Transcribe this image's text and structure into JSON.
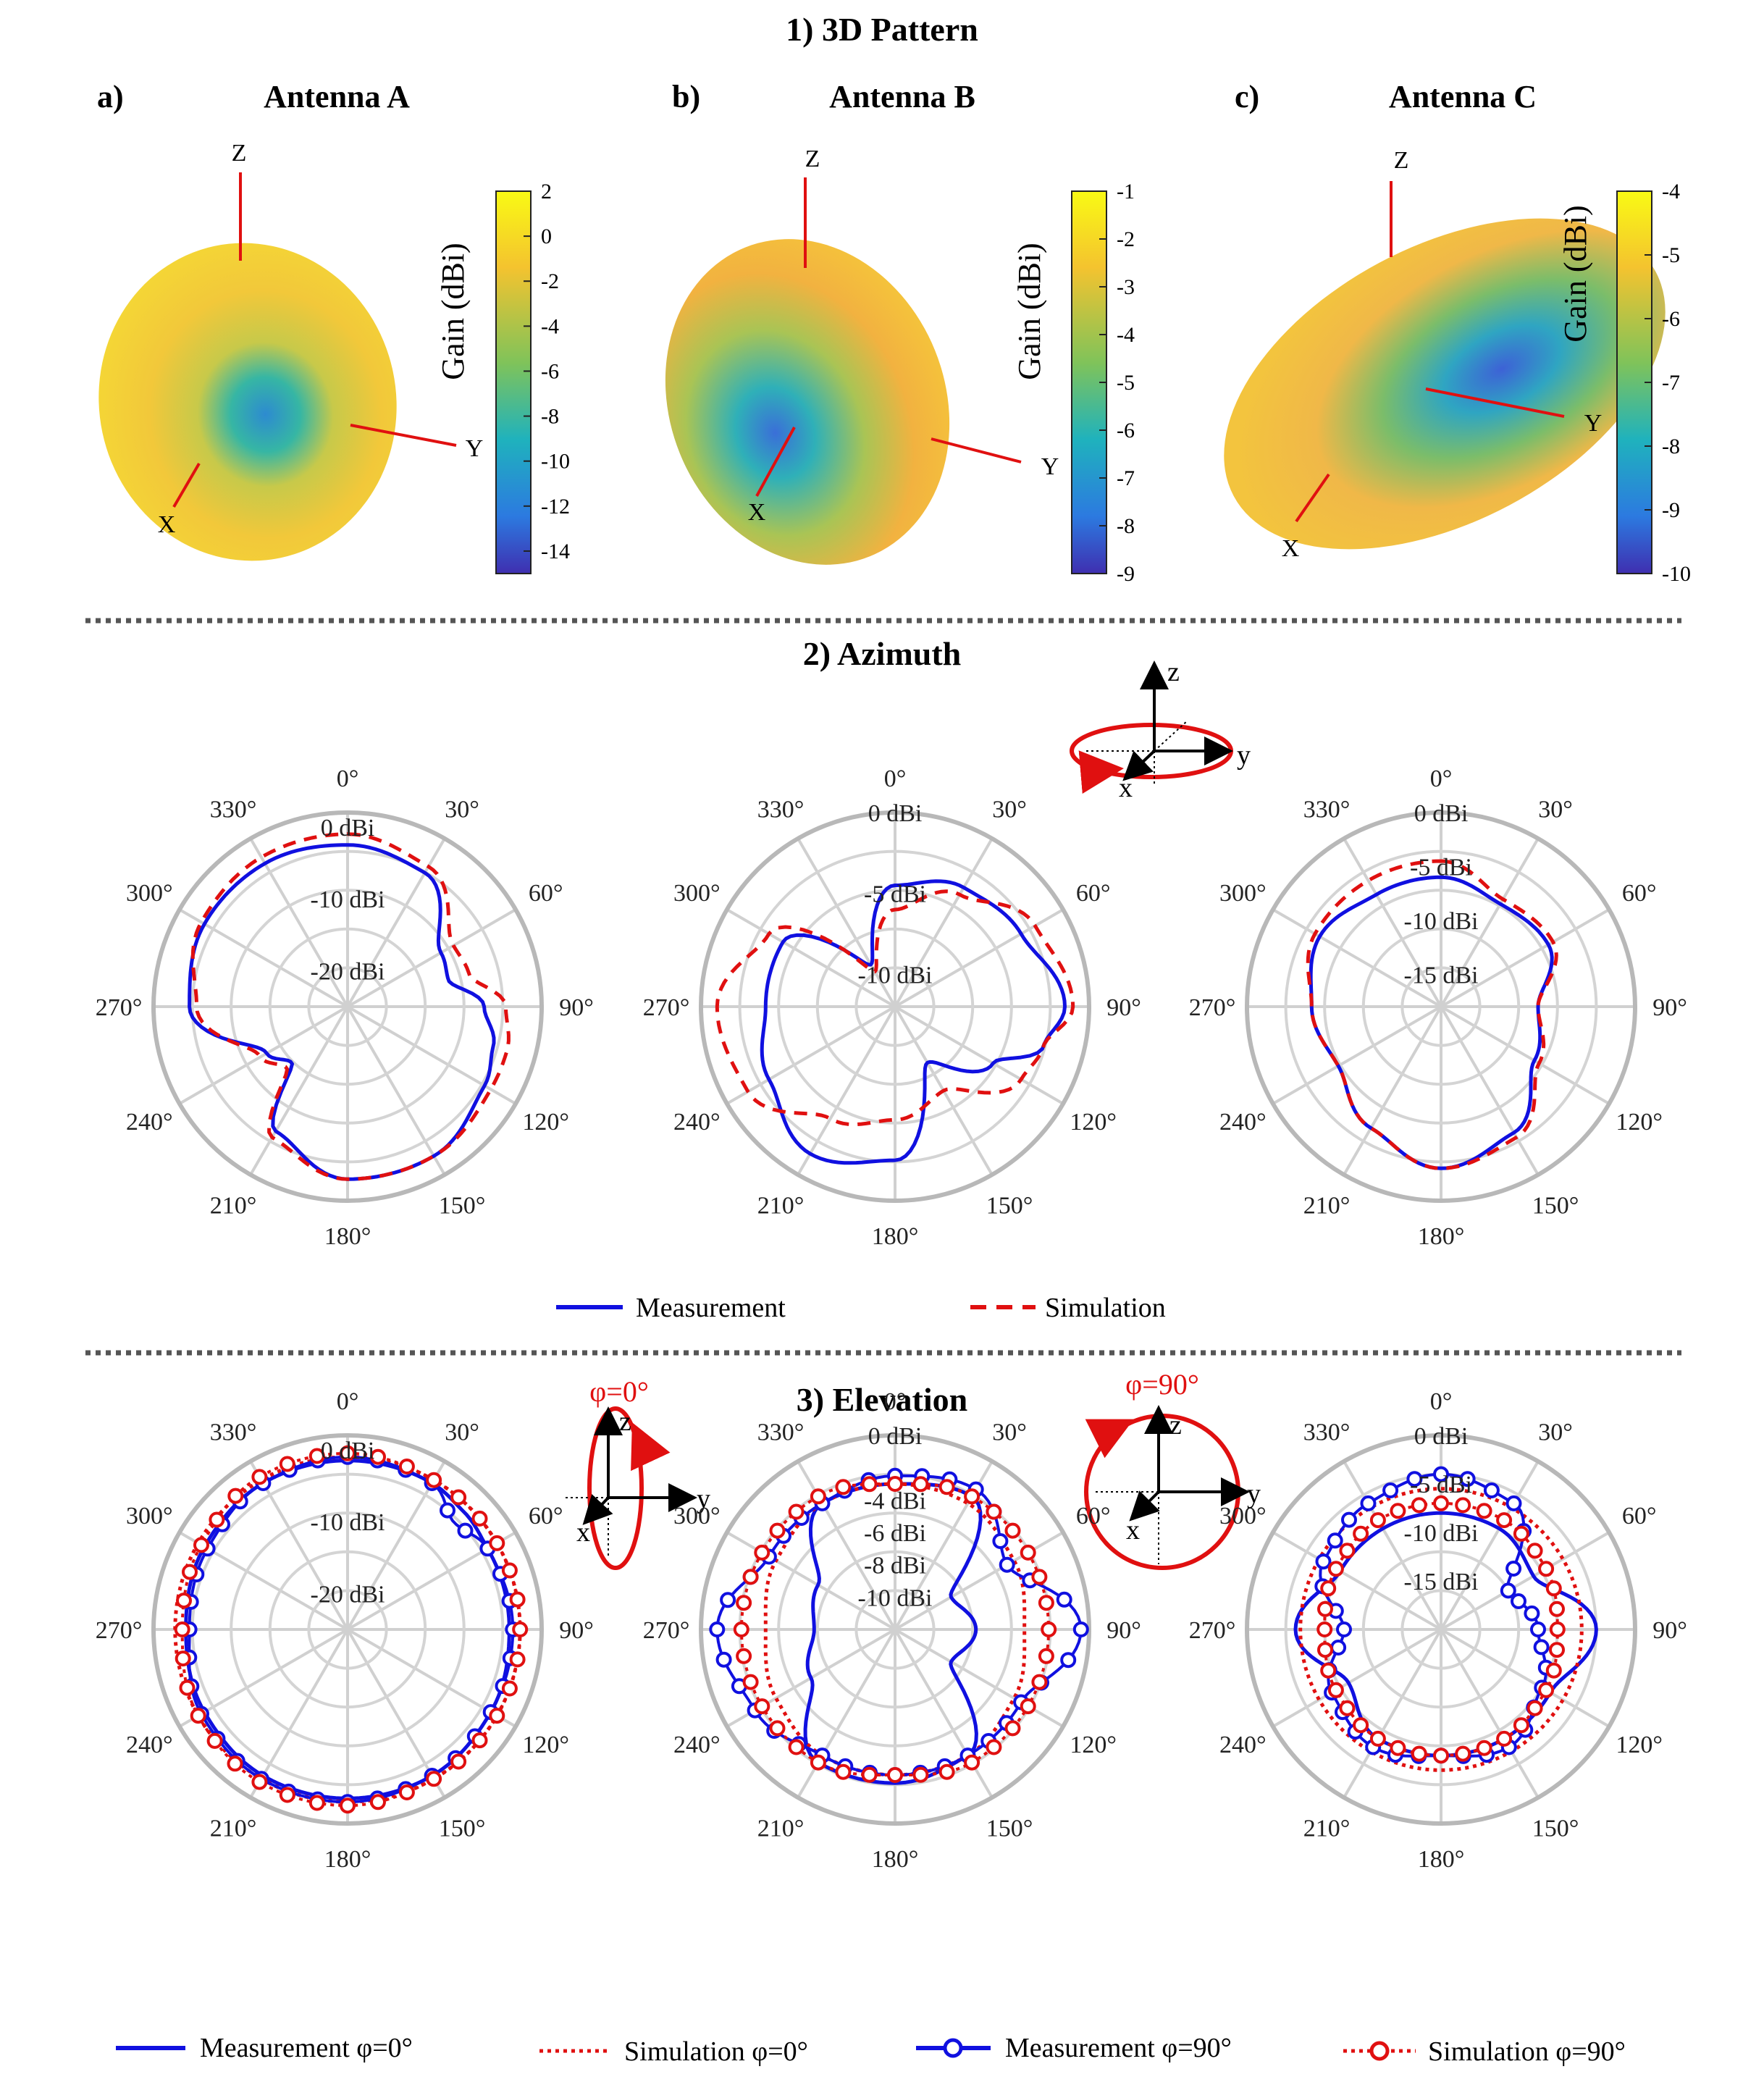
{
  "sections": {
    "s1": "1) 3D Pattern",
    "s2": "2) Azimuth",
    "s3": "3) Elevation"
  },
  "panels3d": [
    {
      "letter": "a)",
      "title": "Antenna A",
      "cb_label": "Gain (dBi)",
      "cb_ticks": [
        "2",
        "0",
        "-2",
        "-4",
        "-6",
        "-8",
        "-10",
        "-12",
        "-14"
      ],
      "cb_range": [
        -15,
        2
      ],
      "axes": {
        "x": "X",
        "y": "Y",
        "z": "Z"
      }
    },
    {
      "letter": "b)",
      "title": "Antenna B",
      "cb_label": "Gain (dBi)",
      "cb_ticks": [
        "-1",
        "-2",
        "-3",
        "-4",
        "-5",
        "-6",
        "-7",
        "-8",
        "-9"
      ],
      "cb_range": [
        -9,
        -1
      ],
      "axes": {
        "x": "X",
        "y": "Y",
        "z": "Z"
      }
    },
    {
      "letter": "c)",
      "title": "Antenna C",
      "cb_label": "Gain (dBi)",
      "cb_ticks": [
        "-4",
        "-5",
        "-6",
        "-7",
        "-8",
        "-9",
        "-10"
      ],
      "cb_range": [
        -10,
        -4
      ],
      "axes": {
        "x": "X",
        "y": "Y",
        "z": "Z"
      }
    }
  ],
  "coord_axes": {
    "x": "x",
    "y": "y",
    "z": "z"
  },
  "phi_labels": {
    "phi0": "φ=0°",
    "phi90": "φ=90°"
  },
  "angle_labels": [
    "0°",
    "30°",
    "60°",
    "90°",
    "120°",
    "150°",
    "180°",
    "210°",
    "240°",
    "270°",
    "300°",
    "330°"
  ],
  "legend_azimuth": {
    "measurement": "Measurement",
    "simulation": "Simulation"
  },
  "legend_elevation": {
    "meas0": "Measurement φ=0°",
    "sim0": "Simulation φ=0°",
    "meas90": "Measurement φ=90°",
    "sim90": "Simulation φ=90°"
  },
  "colors": {
    "measurement": "#1010e0",
    "simulation": "#e01010",
    "grid": "#cfcfcf",
    "outer": "#b8b8b8"
  },
  "chart_data": [
    {
      "type": "polar",
      "name": "Azimuth Antenna A",
      "rlim": [
        -25,
        2
      ],
      "ring_labels": [
        {
          "value": 0,
          "label": "0 dBi"
        },
        {
          "value": -10,
          "label": "-10 dBi"
        },
        {
          "value": -20,
          "label": "-20 dBi"
        }
      ],
      "angles": [
        0,
        30,
        60,
        75,
        90,
        105,
        120,
        150,
        180,
        210,
        225,
        240,
        270,
        300,
        330
      ],
      "series": [
        {
          "name": "Measurement",
          "values": [
            -2.5,
            -3.5,
            -10,
            -10.5,
            -6,
            -4,
            -3,
            -1,
            -1,
            -5,
            -14,
            -12,
            -3,
            -2,
            -2
          ]
        },
        {
          "name": "Simulation",
          "values": [
            -1,
            -2.5,
            -8,
            -7.5,
            -3,
            -2,
            -2,
            -1,
            -1,
            -4,
            -13,
            -11,
            -4,
            -1.5,
            -1
          ]
        }
      ]
    },
    {
      "type": "polar",
      "name": "Azimuth Antenna B",
      "rlim": [
        -12,
        0
      ],
      "ring_labels": [
        {
          "value": 0,
          "label": "0 dBi"
        },
        {
          "value": -5,
          "label": "-5 dBi"
        },
        {
          "value": -10,
          "label": "-10 dBi"
        }
      ],
      "angles": [
        0,
        30,
        60,
        90,
        105,
        120,
        150,
        180,
        210,
        240,
        270,
        300,
        330
      ],
      "series": [
        {
          "name": "Measurement",
          "values": [
            -4.5,
            -3.5,
            -3,
            -1.5,
            -2.5,
            -5,
            -8,
            -2.5,
            -1.5,
            -3,
            -4,
            -4,
            -9
          ]
        },
        {
          "name": "Simulation",
          "values": [
            -6,
            -4,
            -2,
            -1,
            -2.5,
            -3,
            -6,
            -5,
            -4,
            -1.5,
            -1,
            -3,
            -9.5
          ]
        }
      ]
    },
    {
      "type": "polar",
      "name": "Azimuth Antenna C",
      "rlim": [
        -18,
        0
      ],
      "ring_labels": [
        {
          "value": 0,
          "label": "0 dBi"
        },
        {
          "value": -5,
          "label": "-5 dBi"
        },
        {
          "value": -10,
          "label": "-10 dBi"
        },
        {
          "value": -15,
          "label": "-15 dBi"
        }
      ],
      "angles": [
        0,
        30,
        60,
        90,
        120,
        150,
        180,
        210,
        240,
        270,
        300,
        330
      ],
      "series": [
        {
          "name": "Measurement",
          "values": [
            -6,
            -7,
            -6.5,
            -9,
            -8,
            -4.5,
            -3,
            -5,
            -7,
            -6,
            -5,
            -6
          ]
        },
        {
          "name": "Simulation",
          "values": [
            -4.5,
            -6.5,
            -6,
            -9,
            -7.5,
            -4,
            -3,
            -5,
            -7,
            -6,
            -4.5,
            -4.5
          ]
        }
      ]
    },
    {
      "type": "polar",
      "name": "Elevation Antenna A",
      "rlim": [
        -25,
        2
      ],
      "ring_labels": [
        {
          "value": 0,
          "label": "0 dBi"
        },
        {
          "value": -10,
          "label": "-10 dBi"
        },
        {
          "value": -20,
          "label": "-20 dBi"
        }
      ],
      "angles": [
        0,
        30,
        45,
        60,
        90,
        120,
        150,
        180,
        210,
        240,
        270,
        300,
        330
      ],
      "series": [
        {
          "name": "Measurement φ=0°",
          "values": [
            -1.5,
            -1.5,
            -2,
            -2.5,
            -2.5,
            -2,
            -1.5,
            -1.5,
            -1.5,
            -2,
            -2.5,
            -2,
            -1.5
          ]
        },
        {
          "name": "Simulation φ=0°",
          "values": [
            -1,
            -1,
            -1,
            -1,
            -1,
            -1,
            -1,
            -1,
            -1,
            -1,
            -1,
            -1,
            -1
          ]
        },
        {
          "name": "Measurement φ=90°",
          "values": [
            -1,
            -1.5,
            -4,
            -2.5,
            -2,
            -2,
            -1.5,
            -1,
            -1,
            -1.5,
            -3,
            -2.5,
            -1.5
          ]
        },
        {
          "name": "Simulation φ=90°",
          "values": [
            -0.5,
            -1,
            -1,
            -1,
            -1,
            -1,
            -1,
            -0.5,
            -0.5,
            -1,
            -2,
            -1.5,
            -0.5
          ]
        }
      ]
    },
    {
      "type": "polar",
      "name": "Elevation Antenna B",
      "rlim": [
        -12,
        0
      ],
      "ring_labels": [
        {
          "value": 0,
          "label": "0 dBi"
        },
        {
          "value": -4,
          "label": "-4 dBi"
        },
        {
          "value": -6,
          "label": "-6 dBi"
        },
        {
          "value": -8,
          "label": "-8 dBi"
        },
        {
          "value": -10,
          "label": "-10 dBi"
        }
      ],
      "angles": [
        0,
        30,
        60,
        90,
        120,
        150,
        180,
        210,
        240,
        270,
        300,
        330
      ],
      "series": [
        {
          "name": "Measurement φ=0°",
          "values": [
            -3,
            -2.5,
            -8,
            -7,
            -8,
            -3,
            -2.5,
            -2.5,
            -6,
            -7,
            -6.5,
            -3
          ]
        },
        {
          "name": "Simulation φ=0°",
          "values": [
            -3,
            -3,
            -3.5,
            -4,
            -3.5,
            -3,
            -3,
            -3,
            -3.5,
            -4,
            -3.5,
            -3
          ]
        },
        {
          "name": "Measurement φ=90°",
          "values": [
            -2.5,
            -2,
            -4,
            -0.5,
            -3,
            -3,
            -3,
            -3,
            -2,
            -1,
            -3,
            -3
          ]
        },
        {
          "name": "Simulation φ=90°",
          "values": [
            -3,
            -2.5,
            -2.5,
            -2.5,
            -2.5,
            -2.5,
            -3,
            -2.5,
            -2.5,
            -2.5,
            -2.5,
            -2.5
          ]
        }
      ]
    },
    {
      "type": "polar",
      "name": "Elevation Antenna C",
      "rlim": [
        -20,
        0
      ],
      "ring_labels": [
        {
          "value": 0,
          "label": "0 dBi"
        },
        {
          "value": -5,
          "label": "-5 dBi"
        },
        {
          "value": -10,
          "label": "-10 dBi"
        },
        {
          "value": -15,
          "label": "-15 dBi"
        }
      ],
      "angles": [
        0,
        30,
        60,
        90,
        120,
        150,
        180,
        210,
        240,
        270,
        300,
        330
      ],
      "series": [
        {
          "name": "Measurement φ=0°",
          "values": [
            -8,
            -8,
            -9,
            -4,
            -7,
            -7,
            -7,
            -7,
            -9,
            -5,
            -8,
            -8
          ]
        },
        {
          "name": "Simulation φ=0°",
          "values": [
            -5.5,
            -5.5,
            -5.5,
            -5.5,
            -5.5,
            -5.5,
            -5.5,
            -5.5,
            -5.5,
            -5.5,
            -5.5,
            -5.5
          ]
        },
        {
          "name": "Measurement φ=90°",
          "values": [
            -4,
            -5,
            -12,
            -10,
            -8,
            -6,
            -7,
            -6,
            -7,
            -10,
            -6,
            -5
          ]
        },
        {
          "name": "Simulation φ=90°",
          "values": [
            -7,
            -7,
            -7.5,
            -8,
            -7.5,
            -7,
            -7,
            -7,
            -7.5,
            -8,
            -7.5,
            -7
          ]
        }
      ]
    }
  ]
}
